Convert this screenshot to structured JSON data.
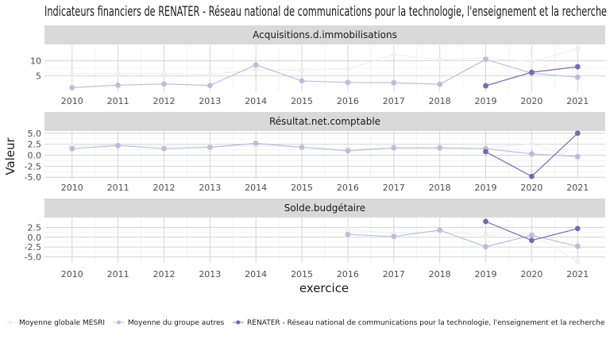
{
  "chart_data": {
    "type": "line",
    "title": "Indicateurs financiers de RENATER - Réseau national de communications pour la technologie, l'enseignement et la recherche",
    "xlabel": "exercice",
    "ylabel": "Valeur",
    "x_ticks": [
      2010,
      2011,
      2012,
      2013,
      2014,
      2015,
      2016,
      2017,
      2018,
      2019,
      2020,
      2021
    ],
    "legend": {
      "position": "bottom",
      "entries": [
        {
          "label": "Moyenne globale MESRI",
          "color": "#efefef"
        },
        {
          "label": "Moyenne du groupe autres",
          "color": "#bcbddc"
        },
        {
          "label": "RENATER - Réseau national de communications pour la technologie, l'enseignement et la recherche",
          "color": "#756bb1"
        }
      ]
    },
    "panels": [
      {
        "title": "Acquisitions.d.immobilisations",
        "ylim": [
          0,
          15
        ],
        "y_ticks": [
          5,
          10
        ],
        "series": [
          {
            "name": "Moyenne globale MESRI",
            "color": "#efefef",
            "x": [
              2010,
              2011,
              2012,
              2013,
              2014,
              2015,
              2016,
              2017,
              2018,
              2019,
              2020,
              2021
            ],
            "values": [
              5.8,
              5.8,
              5.8,
              5.5,
              7.0,
              6.8,
              7.3,
              12.0,
              10.3,
              10.9,
              9.7,
              13.8
            ]
          },
          {
            "name": "Moyenne du groupe autres",
            "color": "#bcbddc",
            "x": [
              2010,
              2011,
              2012,
              2013,
              2014,
              2015,
              2016,
              2017,
              2018,
              2019,
              2020,
              2021
            ],
            "values": [
              1.2,
              2.0,
              2.4,
              1.9,
              8.6,
              3.4,
              2.9,
              2.8,
              2.3,
              10.4,
              5.9,
              4.6
            ]
          },
          {
            "name": "RENATER - Réseau national de communications pour la technologie, l'enseignement et la recherche",
            "color": "#756bb1",
            "x": [
              2019,
              2020,
              2021
            ],
            "values": [
              1.8,
              6.2,
              8.0
            ]
          }
        ]
      },
      {
        "title": "Résultat.net.comptable",
        "ylim": [
          -5.5,
          5.5
        ],
        "y_ticks": [
          -5.0,
          -2.5,
          0.0,
          2.5,
          5.0
        ],
        "series": [
          {
            "name": "Moyenne globale MESRI",
            "color": "#efefef",
            "x": [
              2010,
              2011,
              2012,
              2013,
              2014,
              2015,
              2016,
              2017,
              2018,
              2019,
              2020,
              2021
            ],
            "values": [
              2.1,
              2.3,
              2.1,
              2.0,
              2.1,
              1.8,
              1.5,
              1.5,
              1.5,
              1.6,
              2.6,
              -0.8
            ]
          },
          {
            "name": "Moyenne du groupe autres",
            "color": "#bcbddc",
            "x": [
              2010,
              2011,
              2012,
              2013,
              2014,
              2015,
              2016,
              2017,
              2018,
              2019,
              2020,
              2021
            ],
            "values": [
              1.5,
              2.2,
              1.5,
              1.8,
              2.7,
              1.8,
              1.0,
              1.7,
              1.7,
              1.5,
              0.3,
              -0.3
            ]
          },
          {
            "name": "RENATER - Réseau national de communications pour la technologie, l'enseignement et la recherche",
            "color": "#756bb1",
            "x": [
              2019,
              2020,
              2021
            ],
            "values": [
              0.8,
              -4.8,
              5.0
            ]
          }
        ]
      },
      {
        "title": "Solde.budgétaire",
        "ylim": [
          -6.5,
          5
        ],
        "y_ticks": [
          -5.0,
          -2.5,
          0.0,
          2.5
        ],
        "series": [
          {
            "name": "Moyenne globale MESRI",
            "color": "#efefef",
            "x": [
              2016,
              2017,
              2018,
              2019,
              2020,
              2021
            ],
            "values": [
              2.0,
              1.0,
              1.4,
              0.5,
              0.9,
              -6.2
            ]
          },
          {
            "name": "Moyenne du groupe autres",
            "color": "#bcbddc",
            "x": [
              2016,
              2017,
              2018,
              2019,
              2020,
              2021
            ],
            "values": [
              0.7,
              0.2,
              1.8,
              -2.4,
              0.5,
              -2.3
            ]
          },
          {
            "name": "RENATER - Réseau national de communications pour la technologie, l'enseignement et la recherche",
            "color": "#756bb1",
            "x": [
              2019,
              2020,
              2021
            ],
            "values": [
              4.0,
              -0.8,
              2.2
            ]
          }
        ]
      }
    ]
  }
}
